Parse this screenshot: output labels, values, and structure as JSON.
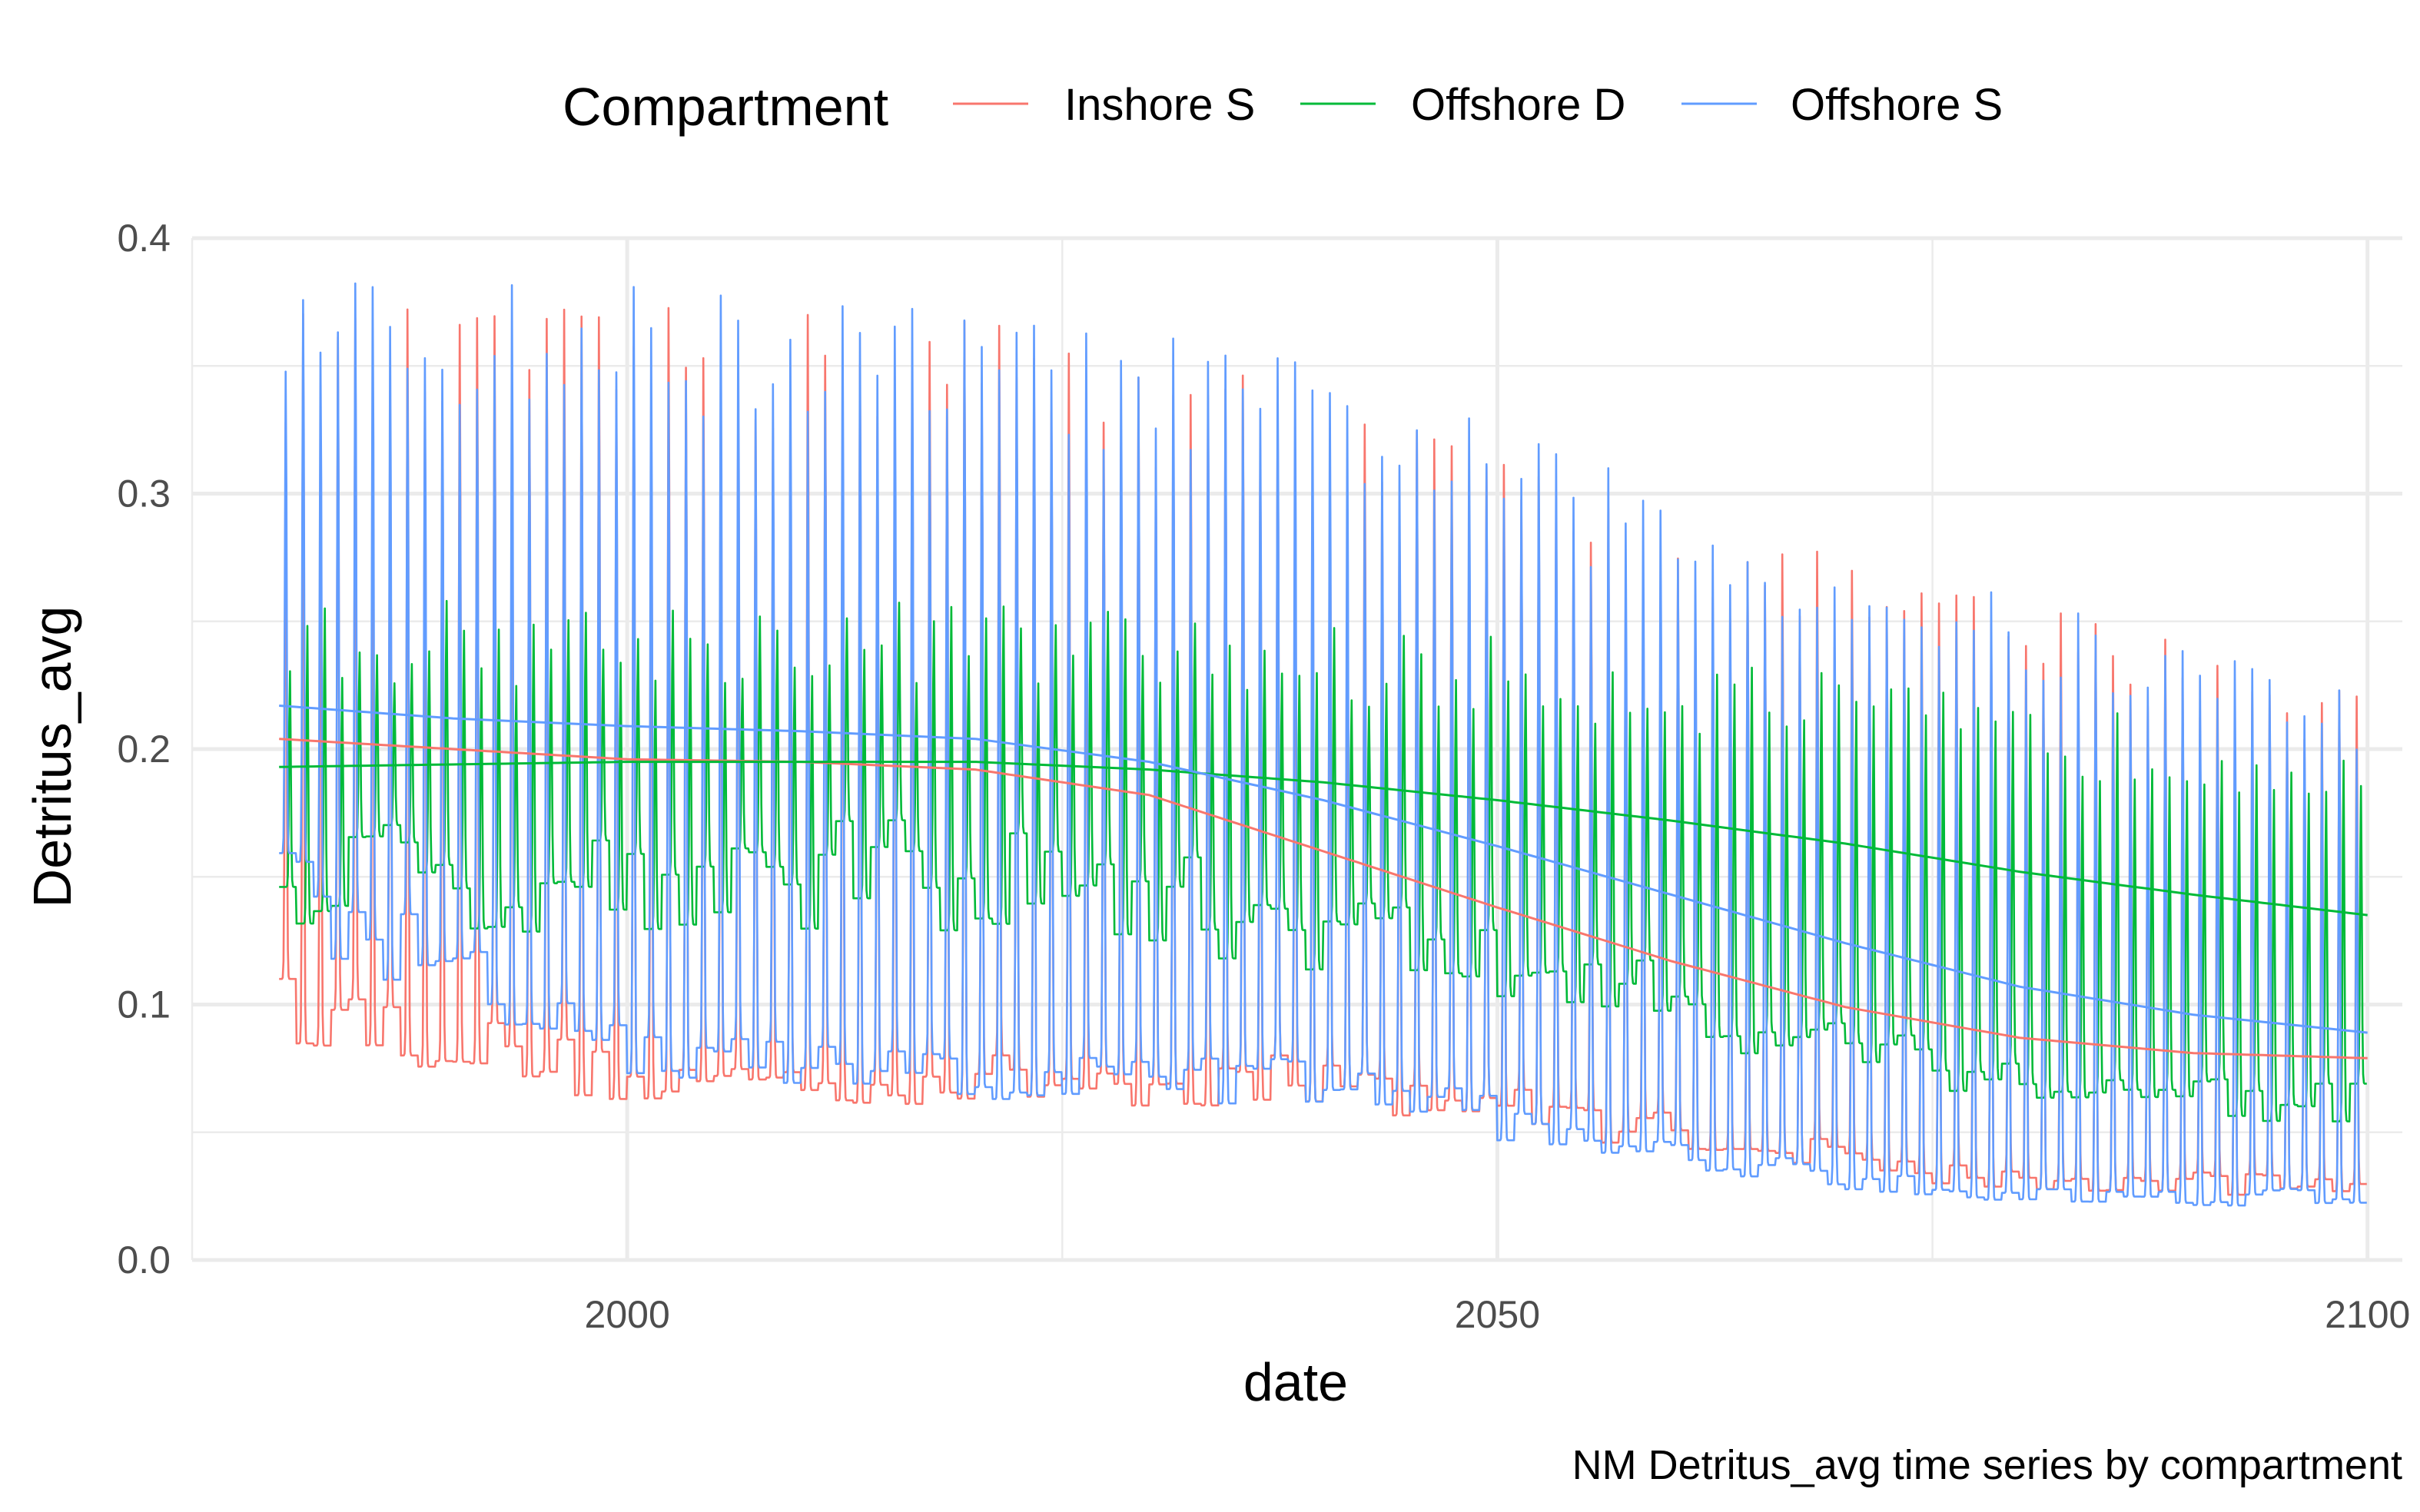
{
  "chart_data": {
    "type": "line",
    "xlabel": "date",
    "ylabel": "Detritus_avg",
    "caption": "NM Detritus_avg time series by compartment",
    "legend": {
      "title": "Compartment",
      "position": "top"
    },
    "xlim": [
      1975,
      2102
    ],
    "ylim": [
      0,
      0.4
    ],
    "x_ticks": [
      {
        "value": 2000,
        "label": "2000"
      },
      {
        "value": 2050,
        "label": "2050"
      },
      {
        "value": 2100,
        "label": "2100"
      }
    ],
    "y_ticks": [
      {
        "value": 0.0,
        "label": "0.0"
      },
      {
        "value": 0.1,
        "label": "0.1"
      },
      {
        "value": 0.2,
        "label": "0.2"
      },
      {
        "value": 0.3,
        "label": "0.3"
      },
      {
        "value": 0.4,
        "label": "0.4"
      }
    ],
    "grid": true,
    "series": [
      {
        "name": "Inshore S",
        "color": "#F8766D",
        "kind": "monthly",
        "annual_cycle": {
          "x_range": [
            1980,
            2100
          ],
          "peak_years": [
            1980,
            2000,
            2020,
            2040,
            2060,
            2080,
            2100
          ],
          "peaks": [
            0.36,
            0.36,
            0.36,
            0.33,
            0.28,
            0.25,
            0.22
          ],
          "trough_years": [
            1980,
            2000,
            2020,
            2040,
            2060,
            2080,
            2100
          ],
          "troughs": [
            0.1,
            0.07,
            0.07,
            0.07,
            0.05,
            0.03,
            0.03
          ]
        },
        "trend": {
          "x": [
            1980,
            1990,
            2000,
            2010,
            2020,
            2030,
            2040,
            2050,
            2060,
            2070,
            2080,
            2090,
            2100
          ],
          "y": [
            0.204,
            0.2,
            0.196,
            0.195,
            0.192,
            0.182,
            0.16,
            0.138,
            0.117,
            0.099,
            0.087,
            0.081,
            0.079
          ]
        }
      },
      {
        "name": "Offshore D",
        "color": "#00BA38",
        "kind": "monthly",
        "annual_cycle": {
          "x_range": [
            1980,
            2100
          ],
          "peak_years": [
            1980,
            2000,
            2020,
            2040,
            2060,
            2080,
            2100
          ],
          "peaks": [
            0.25,
            0.25,
            0.25,
            0.24,
            0.23,
            0.21,
            0.2
          ],
          "trough_years": [
            1980,
            2000,
            2020,
            2040,
            2060,
            2080,
            2100
          ],
          "troughs": [
            0.15,
            0.15,
            0.15,
            0.13,
            0.1,
            0.07,
            0.06
          ]
        },
        "trend": {
          "x": [
            1980,
            1990,
            2000,
            2010,
            2020,
            2030,
            2040,
            2050,
            2060,
            2070,
            2080,
            2090,
            2100
          ],
          "y": [
            0.193,
            0.194,
            0.195,
            0.195,
            0.195,
            0.192,
            0.187,
            0.18,
            0.172,
            0.163,
            0.152,
            0.143,
            0.135
          ]
        }
      },
      {
        "name": "Offshore S",
        "color": "#619CFF",
        "kind": "monthly",
        "annual_cycle": {
          "x_range": [
            1980,
            2100
          ],
          "peak_years": [
            1980,
            2000,
            2020,
            2040,
            2060,
            2080,
            2100
          ],
          "peaks": [
            0.37,
            0.37,
            0.36,
            0.34,
            0.29,
            0.25,
            0.22
          ],
          "trough_years": [
            1980,
            2000,
            2020,
            2040,
            2060,
            2080,
            2100
          ],
          "troughs": [
            0.14,
            0.08,
            0.07,
            0.07,
            0.04,
            0.025,
            0.025
          ]
        },
        "trend": {
          "x": [
            1980,
            1990,
            2000,
            2010,
            2020,
            2030,
            2040,
            2050,
            2060,
            2070,
            2080,
            2090,
            2100
          ],
          "y": [
            0.217,
            0.212,
            0.209,
            0.207,
            0.204,
            0.195,
            0.18,
            0.162,
            0.143,
            0.124,
            0.107,
            0.096,
            0.089
          ]
        }
      }
    ]
  }
}
